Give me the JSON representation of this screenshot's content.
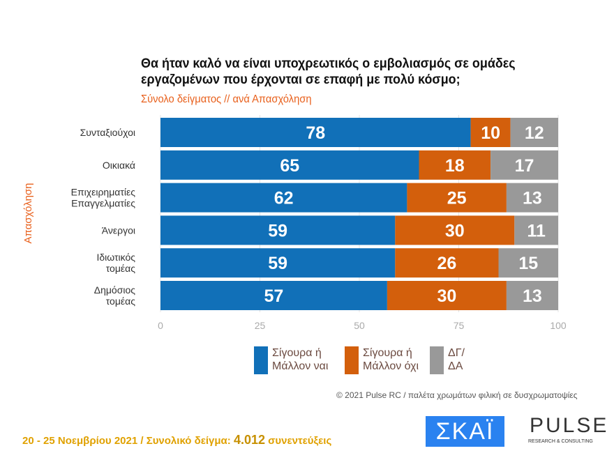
{
  "title": "Θα ήταν καλό να είναι υποχρεωτικός ο εμβολιασμός σε ομάδες εργαζομένων που έρχονται σε επαφή με πολύ κόσμο;",
  "subtitle": "Σύνολο δείγματος // ανά Απασχόληση",
  "chart_data": {
    "type": "bar",
    "stacked": true,
    "orientation": "horizontal",
    "ylabel": "Απασχόληση",
    "categories": [
      [
        "Συνταξιούχοι"
      ],
      [
        "Οικιακά"
      ],
      [
        "Επιχειρηματίες",
        "Επαγγελματίες"
      ],
      [
        "Άνεργοι"
      ],
      [
        "Ιδιωτικός",
        "τομέας"
      ],
      [
        "Δημόσιος",
        "τομέας"
      ]
    ],
    "series": [
      {
        "name": "Σίγουρα ή Μάλλον ναι",
        "legend": [
          "Σίγουρα ή",
          "Μάλλον ναι"
        ],
        "color": "#1170b8",
        "values": [
          78,
          65,
          62,
          59,
          59,
          57
        ]
      },
      {
        "name": "Σίγουρα ή Μάλλον όχι",
        "legend": [
          "Σίγουρα ή",
          "Μάλλον όχι"
        ],
        "color": "#d35f0c",
        "values": [
          10,
          18,
          25,
          30,
          26,
          30
        ]
      },
      {
        "name": "ΔΓ/ΔΑ",
        "legend": [
          "ΔΓ/",
          "ΔΑ"
        ],
        "color": "#999999",
        "values": [
          12,
          17,
          13,
          11,
          15,
          13
        ]
      }
    ],
    "xlim": [
      0,
      100
    ],
    "xticks": [
      "0",
      "25",
      "50",
      "75",
      "100"
    ],
    "grid": true,
    "legend_position": "bottom"
  },
  "copyright": "© 2021 Pulse RC  /  παλέτα χρωμάτων φιλική σε δυσχρωματοψίες",
  "footer": {
    "dates": "20 - 25  Νοεμβρίου 2021  /  Συνολικό δείγμα:  ",
    "sample": "4.012",
    "suffix": " συνεντεύξεις"
  },
  "logos": {
    "skai": "ΣΚΑΪ",
    "pulse": "PULSE",
    "pulse_sub": "RESEARCH & CONSULTING"
  }
}
